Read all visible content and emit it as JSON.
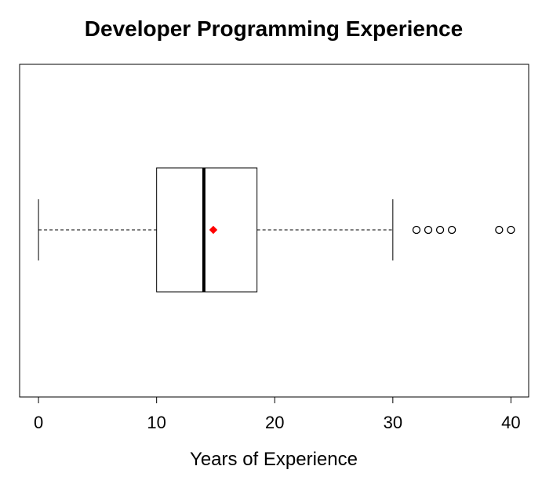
{
  "chart_data": {
    "type": "boxplot",
    "orientation": "horizontal",
    "title": "Developer Programming Experience",
    "xlabel": "Years of Experience",
    "ylabel": "",
    "xlim": [
      -1.6,
      41.5
    ],
    "x_ticks": [
      0,
      10,
      20,
      30,
      40
    ],
    "grid": false,
    "box": {
      "whisker_low": 0,
      "q1": 10,
      "median": 14,
      "q3": 18.5,
      "whisker_high": 30,
      "mean": 14.8,
      "outliers": [
        32,
        33,
        34,
        35,
        39,
        40
      ]
    },
    "colors": {
      "box_stroke": "#000000",
      "mean_marker": "#ff0000",
      "outlier_stroke": "#000000"
    }
  }
}
